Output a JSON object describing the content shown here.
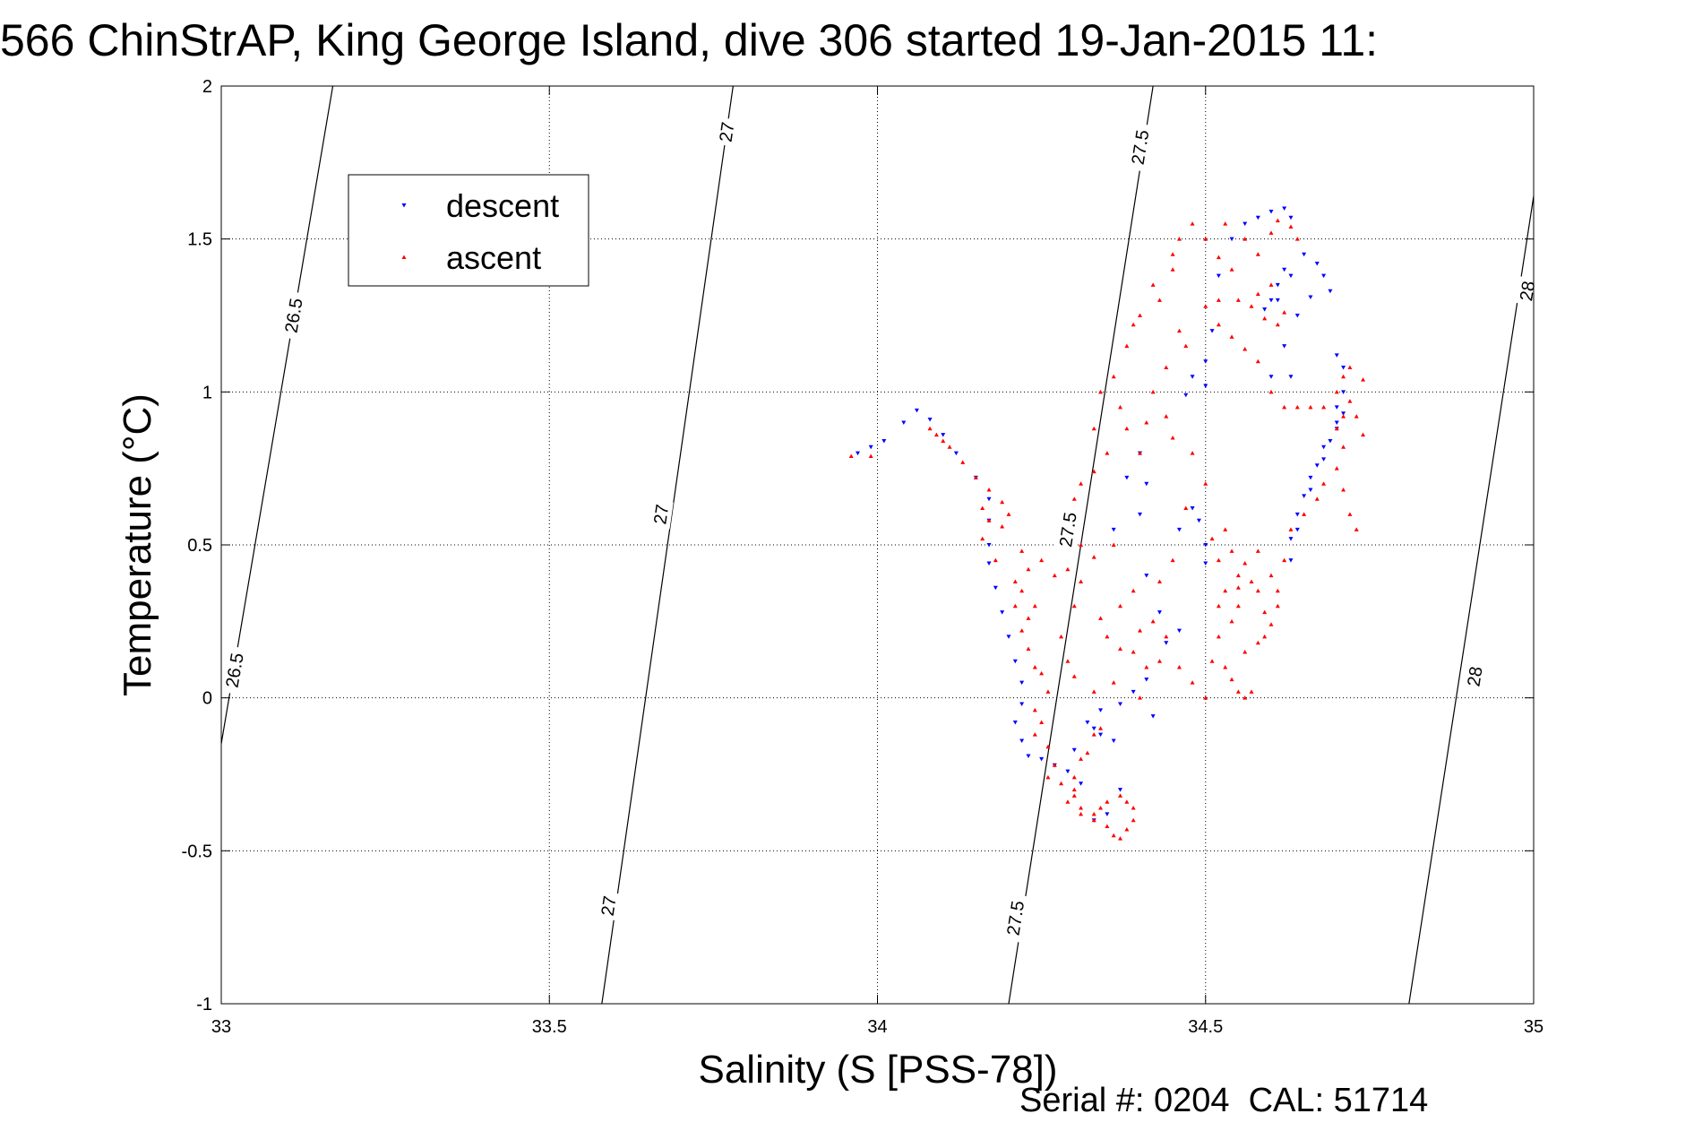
{
  "chart_data": {
    "type": "scatter",
    "title": "566 ChinStrAP, King George Island, dive 306 started 19-Jan-2015 11:",
    "xlabel": "Salinity (S [PSS-78])",
    "ylabel": "Temperature (°C)",
    "footer": "Serial #: 0204  CAL: 51714",
    "xlim": [
      33,
      35
    ],
    "ylim": [
      -1,
      2
    ],
    "xticks": [
      33,
      33.5,
      34,
      34.5,
      35
    ],
    "yticks": [
      -1,
      -0.5,
      0,
      0.5,
      1,
      1.5,
      2
    ],
    "grid": true,
    "legend_position": "top-left",
    "series": [
      {
        "name": "descent",
        "marker": "triangle-down",
        "color": "#0000ff",
        "points": [
          [
            33.97,
            0.8
          ],
          [
            33.99,
            0.82
          ],
          [
            34.01,
            0.84
          ],
          [
            34.04,
            0.9
          ],
          [
            34.06,
            0.94
          ],
          [
            34.08,
            0.91
          ],
          [
            34.1,
            0.86
          ],
          [
            34.12,
            0.8
          ],
          [
            34.15,
            0.72
          ],
          [
            34.17,
            0.65
          ],
          [
            34.17,
            0.58
          ],
          [
            34.17,
            0.5
          ],
          [
            34.17,
            0.44
          ],
          [
            34.18,
            0.36
          ],
          [
            34.19,
            0.28
          ],
          [
            34.2,
            0.2
          ],
          [
            34.21,
            0.12
          ],
          [
            34.22,
            0.05
          ],
          [
            34.22,
            -0.02
          ],
          [
            34.21,
            -0.08
          ],
          [
            34.22,
            -0.14
          ],
          [
            34.23,
            -0.19
          ],
          [
            34.25,
            -0.2
          ],
          [
            34.27,
            -0.22
          ],
          [
            34.29,
            -0.24
          ],
          [
            34.3,
            -0.17
          ],
          [
            34.31,
            -0.28
          ],
          [
            34.33,
            -0.4
          ],
          [
            34.35,
            -0.38
          ],
          [
            34.37,
            -0.3
          ],
          [
            34.36,
            -0.14
          ],
          [
            34.34,
            -0.12
          ],
          [
            34.33,
            -0.1
          ],
          [
            34.32,
            -0.08
          ],
          [
            34.34,
            -0.04
          ],
          [
            34.37,
            -0.02
          ],
          [
            34.39,
            0.02
          ],
          [
            34.41,
            0.06
          ],
          [
            34.42,
            -0.06
          ],
          [
            34.36,
            0.55
          ],
          [
            34.38,
            0.72
          ],
          [
            34.4,
            0.8
          ],
          [
            34.41,
            0.7
          ],
          [
            34.4,
            0.6
          ],
          [
            34.41,
            0.4
          ],
          [
            34.43,
            0.28
          ],
          [
            34.44,
            0.18
          ],
          [
            34.46,
            0.22
          ],
          [
            34.46,
            0.55
          ],
          [
            34.48,
            0.62
          ],
          [
            34.49,
            0.58
          ],
          [
            34.5,
            0.5
          ],
          [
            34.5,
            0.44
          ],
          [
            34.47,
            0.99
          ],
          [
            34.48,
            1.05
          ],
          [
            34.5,
            1.02
          ],
          [
            34.5,
            1.1
          ],
          [
            34.51,
            1.2
          ],
          [
            34.52,
            1.38
          ],
          [
            34.54,
            1.5
          ],
          [
            34.56,
            1.55
          ],
          [
            34.58,
            1.57
          ],
          [
            34.6,
            1.59
          ],
          [
            34.62,
            1.6
          ],
          [
            34.63,
            1.57
          ],
          [
            34.62,
            1.4
          ],
          [
            34.61,
            1.35
          ],
          [
            34.6,
            1.3
          ],
          [
            34.59,
            1.27
          ],
          [
            34.61,
            1.3
          ],
          [
            34.63,
            1.38
          ],
          [
            34.65,
            1.45
          ],
          [
            34.67,
            1.42
          ],
          [
            34.68,
            1.38
          ],
          [
            34.69,
            1.33
          ],
          [
            34.66,
            1.31
          ],
          [
            34.64,
            1.25
          ],
          [
            34.62,
            1.15
          ],
          [
            34.6,
            1.05
          ],
          [
            34.63,
            1.05
          ],
          [
            34.7,
            1.12
          ],
          [
            34.71,
            1.08
          ],
          [
            34.71,
            1.0
          ],
          [
            34.7,
            0.95
          ],
          [
            34.7,
            0.9
          ],
          [
            34.69,
            0.84
          ],
          [
            34.68,
            0.78
          ],
          [
            34.66,
            0.72
          ],
          [
            34.65,
            0.66
          ],
          [
            34.64,
            0.6
          ],
          [
            34.63,
            0.52
          ],
          [
            34.63,
            0.45
          ],
          [
            34.64,
            0.55
          ],
          [
            34.66,
            0.68
          ],
          [
            34.67,
            0.76
          ],
          [
            34.68,
            0.82
          ],
          [
            34.7,
            0.88
          ],
          [
            34.71,
            0.93
          ]
        ]
      },
      {
        "name": "ascent",
        "marker": "triangle-up",
        "color": "#ff0000",
        "points": [
          [
            33.96,
            0.79
          ],
          [
            33.99,
            0.79
          ],
          [
            34.09,
            0.86
          ],
          [
            34.11,
            0.82
          ],
          [
            34.13,
            0.77
          ],
          [
            34.15,
            0.72
          ],
          [
            34.17,
            0.68
          ],
          [
            34.19,
            0.64
          ],
          [
            34.16,
            0.62
          ],
          [
            34.17,
            0.58
          ],
          [
            34.19,
            0.56
          ],
          [
            34.16,
            0.52
          ],
          [
            34.22,
            0.48
          ],
          [
            34.25,
            0.45
          ],
          [
            34.23,
            0.42
          ],
          [
            34.21,
            0.38
          ],
          [
            34.22,
            0.35
          ],
          [
            34.24,
            0.3
          ],
          [
            34.23,
            0.26
          ],
          [
            34.22,
            0.22
          ],
          [
            34.23,
            0.16
          ],
          [
            34.24,
            0.1
          ],
          [
            34.25,
            0.08
          ],
          [
            34.26,
            0.02
          ],
          [
            34.24,
            -0.04
          ],
          [
            34.25,
            -0.08
          ],
          [
            34.24,
            -0.12
          ],
          [
            34.26,
            -0.16
          ],
          [
            34.27,
            -0.22
          ],
          [
            34.26,
            -0.26
          ],
          [
            34.28,
            -0.28
          ],
          [
            34.3,
            -0.3
          ],
          [
            34.29,
            -0.34
          ],
          [
            34.31,
            -0.38
          ],
          [
            34.33,
            -0.4
          ],
          [
            34.34,
            -0.36
          ],
          [
            34.35,
            -0.34
          ],
          [
            34.37,
            -0.32
          ],
          [
            34.38,
            -0.34
          ],
          [
            34.39,
            -0.36
          ],
          [
            34.39,
            -0.4
          ],
          [
            34.38,
            -0.43
          ],
          [
            34.37,
            -0.46
          ],
          [
            34.36,
            -0.45
          ],
          [
            34.35,
            -0.42
          ],
          [
            34.33,
            -0.38
          ],
          [
            34.31,
            -0.36
          ],
          [
            34.3,
            -0.32
          ],
          [
            34.3,
            -0.26
          ],
          [
            34.31,
            -0.2
          ],
          [
            34.32,
            -0.18
          ],
          [
            34.33,
            -0.12
          ],
          [
            34.34,
            -0.1
          ],
          [
            34.33,
            0.02
          ],
          [
            34.3,
            0.07
          ],
          [
            34.29,
            0.12
          ],
          [
            34.28,
            0.2
          ],
          [
            34.3,
            0.3
          ],
          [
            34.31,
            0.38
          ],
          [
            34.33,
            0.46
          ],
          [
            34.36,
            0.5
          ],
          [
            34.34,
            0.26
          ],
          [
            34.37,
            0.16
          ],
          [
            34.39,
            0.15
          ],
          [
            34.36,
            0.05
          ],
          [
            34.4,
            0.0
          ],
          [
            34.41,
            0.1
          ],
          [
            34.43,
            0.12
          ],
          [
            34.4,
            0.22
          ],
          [
            34.43,
            0.38
          ],
          [
            34.45,
            0.45
          ],
          [
            34.47,
            0.62
          ],
          [
            34.5,
            0.7
          ],
          [
            34.4,
            0.8
          ],
          [
            34.41,
            0.9
          ],
          [
            34.37,
            0.95
          ],
          [
            34.38,
            0.88
          ],
          [
            34.35,
            0.8
          ],
          [
            34.33,
            0.74
          ],
          [
            34.31,
            0.7
          ],
          [
            34.3,
            0.65
          ],
          [
            34.33,
            0.88
          ],
          [
            34.34,
            1.0
          ],
          [
            34.36,
            1.05
          ],
          [
            34.38,
            1.15
          ],
          [
            34.39,
            1.22
          ],
          [
            34.4,
            1.25
          ],
          [
            34.42,
            1.35
          ],
          [
            34.43,
            1.3
          ],
          [
            34.45,
            1.4
          ],
          [
            34.46,
            1.2
          ],
          [
            34.47,
            1.15
          ],
          [
            34.44,
            1.08
          ],
          [
            34.42,
            1.0
          ],
          [
            34.44,
            0.92
          ],
          [
            34.45,
            0.85
          ],
          [
            34.48,
            0.8
          ],
          [
            34.51,
            0.52
          ],
          [
            34.52,
            0.45
          ],
          [
            34.53,
            0.55
          ],
          [
            34.54,
            0.48
          ],
          [
            34.55,
            0.4
          ],
          [
            34.55,
            0.3
          ],
          [
            34.54,
            0.25
          ],
          [
            34.53,
            0.35
          ],
          [
            34.52,
            0.2
          ],
          [
            34.53,
            0.1
          ],
          [
            34.54,
            0.06
          ],
          [
            34.55,
            0.02
          ],
          [
            34.56,
            0.0
          ],
          [
            34.57,
            0.02
          ],
          [
            34.56,
            0.15
          ],
          [
            34.58,
            0.18
          ],
          [
            34.59,
            0.2
          ],
          [
            34.6,
            0.24
          ],
          [
            34.61,
            0.3
          ],
          [
            34.59,
            0.28
          ],
          [
            34.58,
            0.35
          ],
          [
            34.57,
            0.38
          ],
          [
            34.55,
            0.36
          ],
          [
            34.56,
            0.44
          ],
          [
            34.58,
            0.48
          ],
          [
            34.6,
            0.4
          ],
          [
            34.61,
            0.35
          ],
          [
            34.62,
            0.45
          ],
          [
            34.63,
            0.55
          ],
          [
            34.65,
            0.6
          ],
          [
            34.67,
            0.65
          ],
          [
            34.68,
            0.7
          ],
          [
            34.7,
            0.75
          ],
          [
            34.71,
            0.68
          ],
          [
            34.72,
            0.6
          ],
          [
            34.73,
            0.55
          ],
          [
            34.71,
            0.82
          ],
          [
            34.7,
            0.88
          ],
          [
            34.71,
            0.92
          ],
          [
            34.72,
            0.97
          ],
          [
            34.7,
            1.0
          ],
          [
            34.71,
            1.05
          ],
          [
            34.72,
            1.08
          ],
          [
            34.74,
            1.04
          ],
          [
            34.73,
            0.92
          ],
          [
            34.74,
            0.86
          ],
          [
            34.68,
            0.95
          ],
          [
            34.66,
            0.95
          ],
          [
            34.64,
            0.95
          ],
          [
            34.62,
            0.95
          ],
          [
            34.6,
            1.0
          ],
          [
            34.58,
            1.1
          ],
          [
            34.56,
            1.14
          ],
          [
            34.54,
            1.18
          ],
          [
            34.52,
            1.22
          ],
          [
            34.5,
            1.28
          ],
          [
            34.52,
            1.3
          ],
          [
            34.55,
            1.3
          ],
          [
            34.57,
            1.28
          ],
          [
            34.59,
            1.24
          ],
          [
            34.61,
            1.22
          ],
          [
            34.62,
            1.26
          ],
          [
            34.6,
            1.35
          ],
          [
            34.58,
            1.32
          ],
          [
            34.54,
            1.4
          ],
          [
            34.52,
            1.44
          ],
          [
            34.5,
            1.5
          ],
          [
            34.53,
            1.55
          ],
          [
            34.56,
            1.5
          ],
          [
            34.58,
            1.45
          ],
          [
            34.6,
            1.52
          ],
          [
            34.61,
            1.56
          ],
          [
            34.63,
            1.54
          ],
          [
            34.64,
            1.5
          ],
          [
            34.48,
            1.55
          ],
          [
            34.46,
            1.5
          ],
          [
            34.45,
            1.45
          ],
          [
            34.1,
            0.84
          ],
          [
            34.08,
            0.88
          ],
          [
            34.2,
            0.6
          ],
          [
            34.18,
            0.45
          ],
          [
            34.21,
            0.3
          ],
          [
            34.27,
            0.4
          ],
          [
            34.29,
            0.42
          ],
          [
            34.31,
            0.5
          ],
          [
            34.35,
            0.2
          ],
          [
            34.37,
            0.3
          ],
          [
            34.39,
            0.35
          ],
          [
            34.42,
            0.25
          ],
          [
            34.44,
            0.2
          ],
          [
            34.46,
            0.1
          ],
          [
            34.48,
            0.05
          ],
          [
            34.5,
            0.0
          ],
          [
            34.51,
            0.12
          ],
          [
            34.52,
            0.3
          ]
        ]
      }
    ],
    "contours": [
      {
        "label": "26.5",
        "from": [
          33.0,
          -0.15
        ],
        "to": [
          33.17,
          2.0
        ],
        "label_at": [
          [
            33.11,
            1.25
          ],
          [
            33.02,
            0.09
          ]
        ]
      },
      {
        "label": "27",
        "from": [
          33.58,
          -1.0
        ],
        "to": [
          33.78,
          2.0
        ],
        "label_at": [
          [
            33.77,
            1.85
          ],
          [
            33.67,
            0.6
          ],
          [
            33.59,
            -0.68
          ]
        ]
      },
      {
        "label": "27.5",
        "from": [
          34.2,
          -1.0
        ],
        "to": [
          34.42,
          2.0
        ],
        "label_at": [
          [
            34.4,
            1.8
          ],
          [
            34.29,
            0.55
          ],
          [
            34.21,
            -0.72
          ]
        ]
      },
      {
        "label": "28",
        "from": [
          34.81,
          -1.0
        ],
        "to": [
          35.0,
          1.64
        ],
        "label_at": [
          [
            34.99,
            1.33
          ],
          [
            34.91,
            0.07
          ]
        ]
      }
    ]
  }
}
